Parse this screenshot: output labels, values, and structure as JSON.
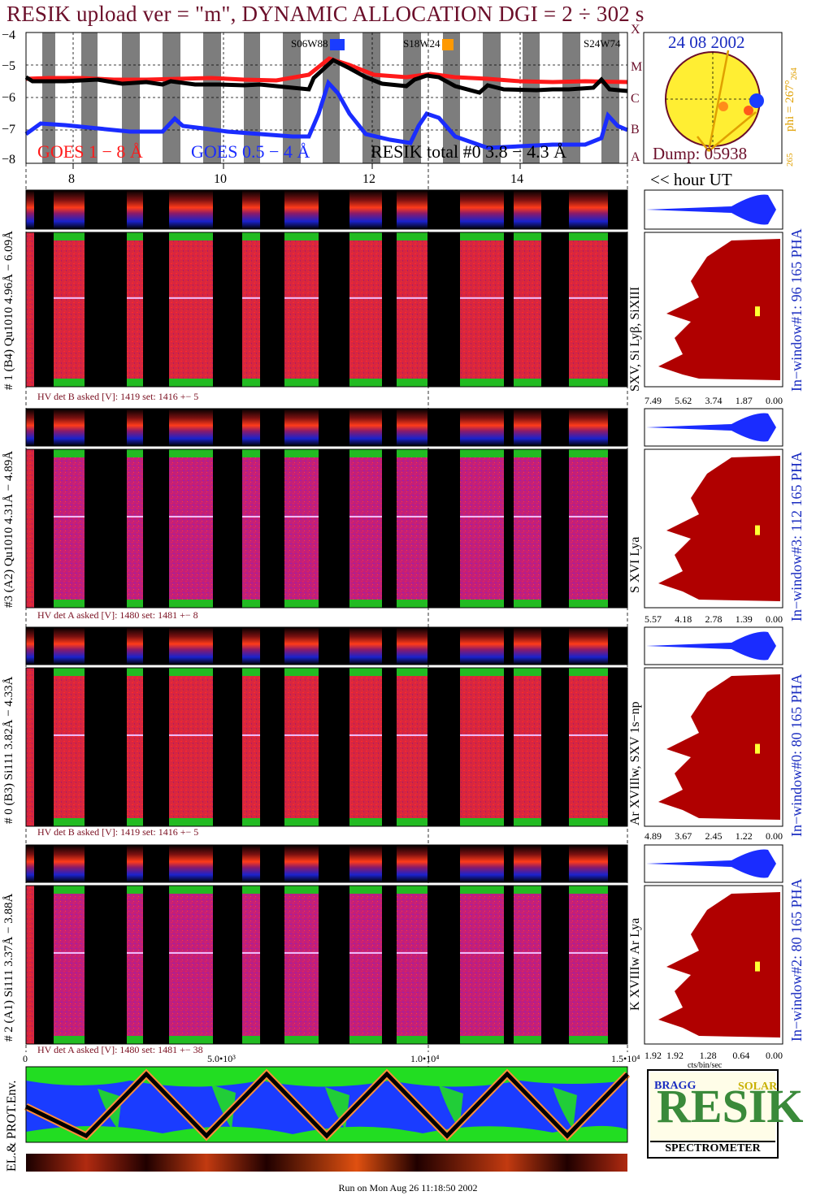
{
  "title": "RESIK upload ver = \"m\", DYNAMIC ALLOCATION  DGI =   2 ÷ 302 s",
  "goes_panel": {
    "ytick_labels": [
      "−4",
      "−5",
      "−6",
      "−7",
      "−8"
    ],
    "class_labels": [
      "X",
      "M",
      "C",
      "B",
      "A"
    ],
    "legend_goes_long": "GOES 1 − 8 Å",
    "legend_goes_short": "GOES 0.5 − 4 Å",
    "legend_resik_total": "RESIK total #0  3.8 − 4.3 Å",
    "flare_tags": [
      {
        "text": "S06W88",
        "color": "#1a3cff"
      },
      {
        "text": "S18W24",
        "color": "#ff9900"
      },
      {
        "text": "S24W74",
        "color": "#ff9900"
      }
    ],
    "colors": {
      "goes_long": "#ff1a1a",
      "goes_short": "#1a2cff",
      "resik_total": "#000000",
      "night_band": "#7d7d7d"
    }
  },
  "hour_axis": {
    "tick_labels": [
      "8",
      "10",
      "12",
      "14"
    ],
    "unit_label": "<< hour UT"
  },
  "sun_panel": {
    "date": "24 08 2002",
    "dump": "Dump: 05938",
    "phi_label": "phi = 267°",
    "phi_sub": "264",
    "phi_low": "265",
    "colors": {
      "disk": "#ffee33",
      "marker_blue": "#1a3cff",
      "marker_orange": "#ff8c1a",
      "text_blue": "#1a2cc0",
      "text_dark": "#6b0f2a",
      "phi_text": "#e0a000"
    }
  },
  "channels": [
    {
      "left_label": "# 1 (B4) Qu1010 4.96Å − 6.09Å",
      "line_label": "SXV, Si Lyβ, SiXIII",
      "window_label": "In−window#1:   96 165 PHA",
      "hv_label": "HV det B asked [V]:  1419 set:  1416  +−    5",
      "xtick_labels": [
        "7.49",
        "5.62",
        "3.74",
        "1.87",
        "0.00"
      ]
    },
    {
      "left_label": "#3 (A2) Qu1010  4.31Å − 4.89Å",
      "line_label": "S XVI Lya",
      "window_label": "In−window#3:  112 165 PHA",
      "hv_label": "HV det A asked [V]:  1480 set:  1481  +−    8",
      "xtick_labels": [
        "5.57",
        "4.18",
        "2.78",
        "1.39",
        "0.00"
      ]
    },
    {
      "left_label": "# 0 (B3) Si111  3.82Å − 4.33Å",
      "line_label": "Ar XVIIlw,  SXV 1s−np",
      "window_label": "In−window#0:   80 165 PHA",
      "hv_label": "HV det B asked [V]:  1419 set:  1416  +−    5",
      "xtick_labels": [
        "4.89",
        "3.67",
        "2.45",
        "1.22",
        "0.00"
      ]
    },
    {
      "left_label": "# 2 (A1) Si111  3.37Å − 3.88Å",
      "line_label": "K XVIIIw  Ar Lya",
      "window_label": "In−window#2:   80 165 PHA",
      "hv_label": "HV det A asked [V]:  1480 set:  1481  +−  38",
      "xtick_labels": [
        "1.92",
        "1.28",
        "0.64",
        "0.00"
      ]
    }
  ],
  "spectrum_colors": {
    "profile_fill": "#b00000",
    "pha_fill": "#1a2cff",
    "marker": "#ffff33"
  },
  "env_panel": {
    "ylabel": "EL.& PROT.Env.",
    "xtick_labels": [
      "0",
      "5.0•10³",
      "1.0•10⁴",
      "1.5•10⁴"
    ],
    "last_xtick_label": "1.92",
    "unit": "cts/bin/sec",
    "colors": {
      "electron": "#1a3cff",
      "proton": "#22dd22",
      "track": "#000000",
      "track_edge": "#ff8c3a"
    }
  },
  "logo": {
    "big_letters": "RESIK",
    "word_bragg": "BRAGG",
    "word_solar": "SOLAR",
    "bottom": "SPECTROMETER"
  },
  "footer": "Run on Mon Aug 26 11:18:50 2002"
}
